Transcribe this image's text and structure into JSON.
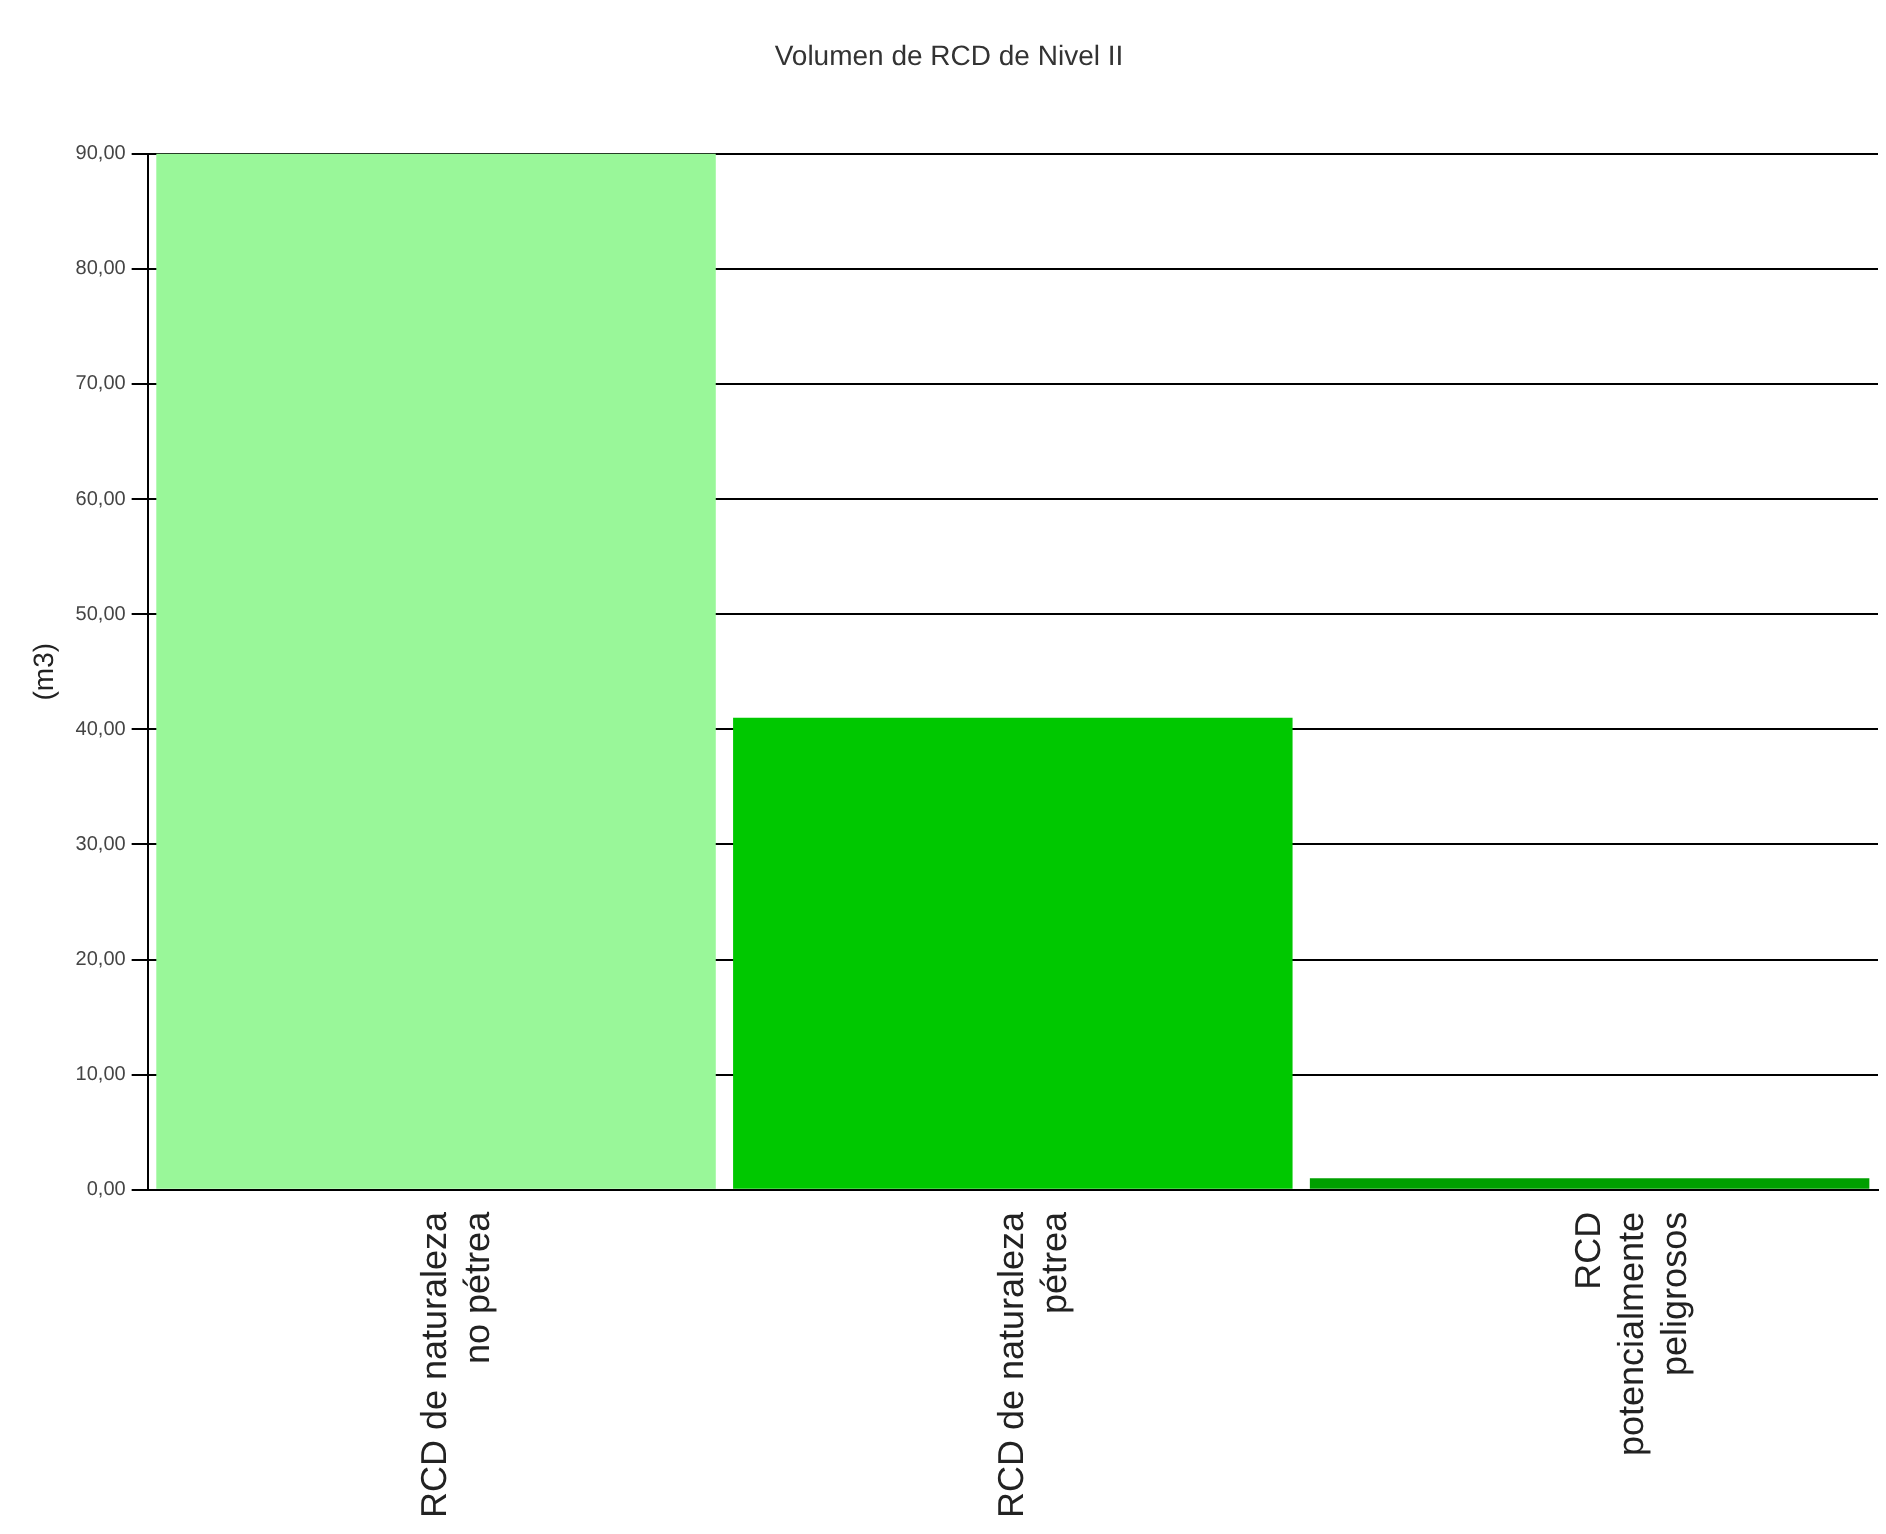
{
  "chart_data": {
    "type": "bar",
    "title": "Volumen de RCD de Nivel II",
    "ylabel": "(m3)",
    "categories": [
      "RCD de naturaleza no pétrea",
      "RCD de naturaleza pétrea",
      "RCD potencialmente peligrosos"
    ],
    "values": [
      90,
      41,
      1
    ],
    "colors": [
      "#99f799",
      "#00c800",
      "#00a000"
    ],
    "ylim": [
      0,
      90
    ],
    "yticks": [
      {
        "value": 0,
        "label": "0,00"
      },
      {
        "value": 10,
        "label": "10,00"
      },
      {
        "value": 20,
        "label": "20,00"
      },
      {
        "value": 30,
        "label": "30,00"
      },
      {
        "value": 40,
        "label": "40,00"
      },
      {
        "value": 50,
        "label": "50,00"
      },
      {
        "value": 60,
        "label": "60,00"
      },
      {
        "value": 70,
        "label": "70,00"
      },
      {
        "value": 80,
        "label": "80,00"
      },
      {
        "value": 90,
        "label": "90,00"
      }
    ],
    "grid": "y",
    "legend": false
  }
}
